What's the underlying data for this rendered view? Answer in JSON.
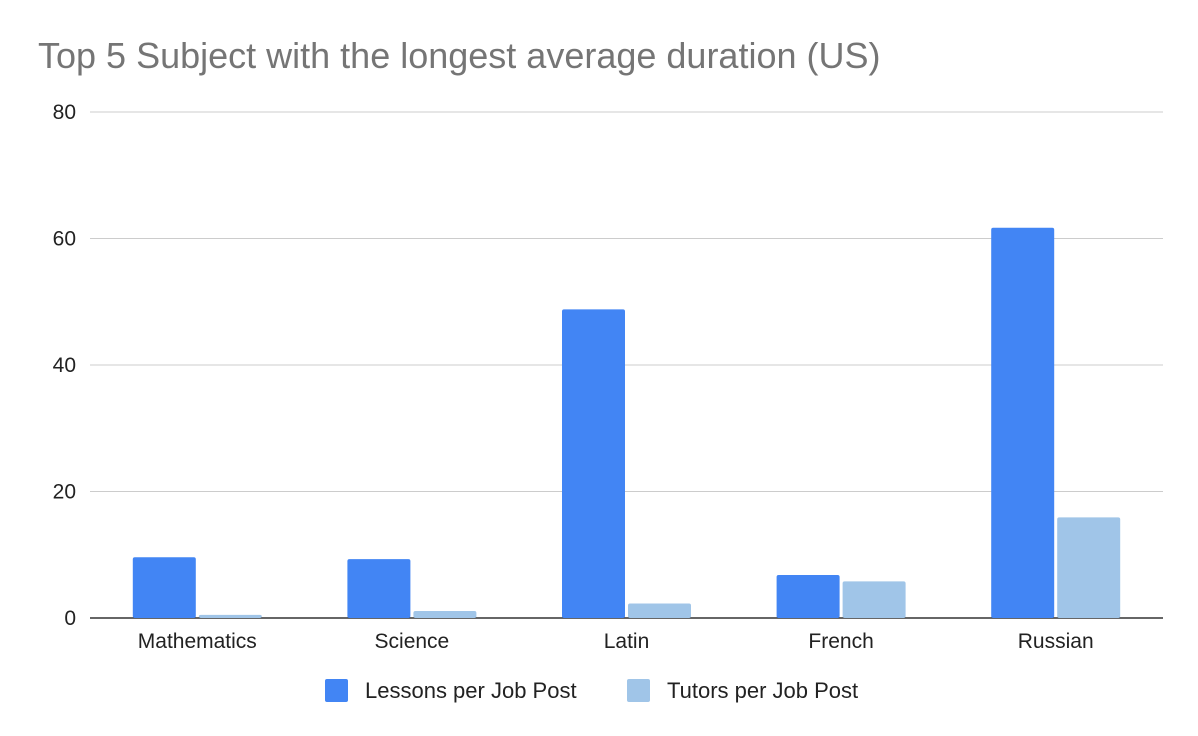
{
  "chart_data": {
    "type": "bar",
    "title": "Top 5 Subject with the longest average duration (US)",
    "xlabel": "",
    "ylabel": "",
    "categories": [
      "Mathematics",
      "Science",
      "Latin",
      "French",
      "Russian"
    ],
    "series": [
      {
        "name": "Lessons per Job Post",
        "values": [
          9.6,
          9.3,
          48.8,
          6.8,
          61.7
        ],
        "color": "#4285f4"
      },
      {
        "name": "Tutors per Job Post",
        "values": [
          0.5,
          1.1,
          2.3,
          5.8,
          15.9
        ],
        "color": "#a0c5e8"
      }
    ],
    "ylim": [
      0,
      80
    ],
    "yticks": [
      "0",
      "20",
      "40",
      "60",
      "80"
    ],
    "grid": true,
    "legend": "bottom"
  }
}
